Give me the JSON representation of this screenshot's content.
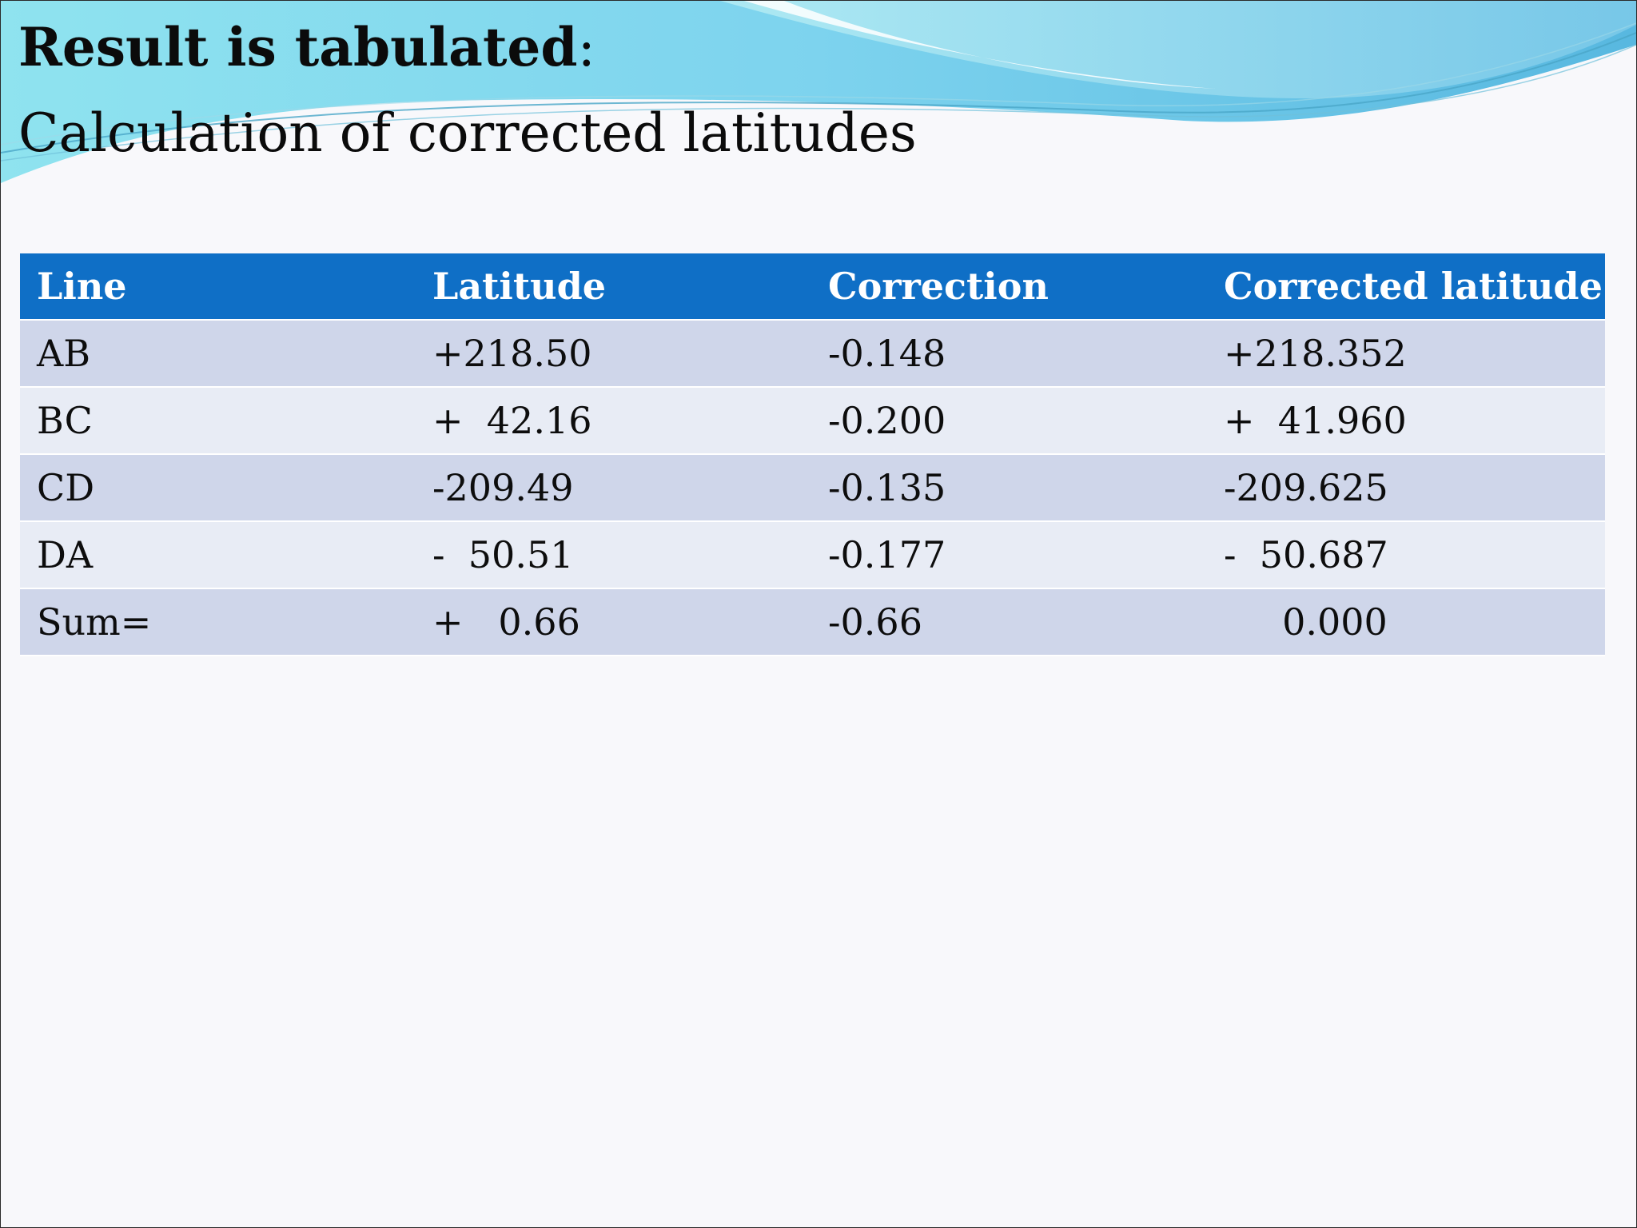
{
  "slide": {
    "title_bold": "Result is tabulated",
    "title_colon": ":",
    "subtitle": "Calculation of corrected latitudes"
  },
  "table": {
    "headers": [
      "Line",
      "Latitude",
      "Correction",
      "Corrected latitude"
    ],
    "rows": [
      [
        "AB",
        "+218.50",
        "-0.148",
        "+218.352"
      ],
      [
        "BC",
        "+  42.16",
        "-0.200",
        "+  41.960"
      ],
      [
        "CD",
        "-209.49",
        "-0.135",
        "-209.625"
      ],
      [
        "DA",
        "-  50.51",
        "-0.177",
        "-  50.687"
      ],
      [
        "Sum=",
        "+   0.66",
        "-0.66",
        "     0.000"
      ]
    ]
  },
  "colors": {
    "header_background": "#0f6fc6",
    "row_odd": "#cfd6ea",
    "row_even": "#e8ecf5",
    "wave_light": "#8fe3ef",
    "wave_dark": "#58b8e0"
  }
}
